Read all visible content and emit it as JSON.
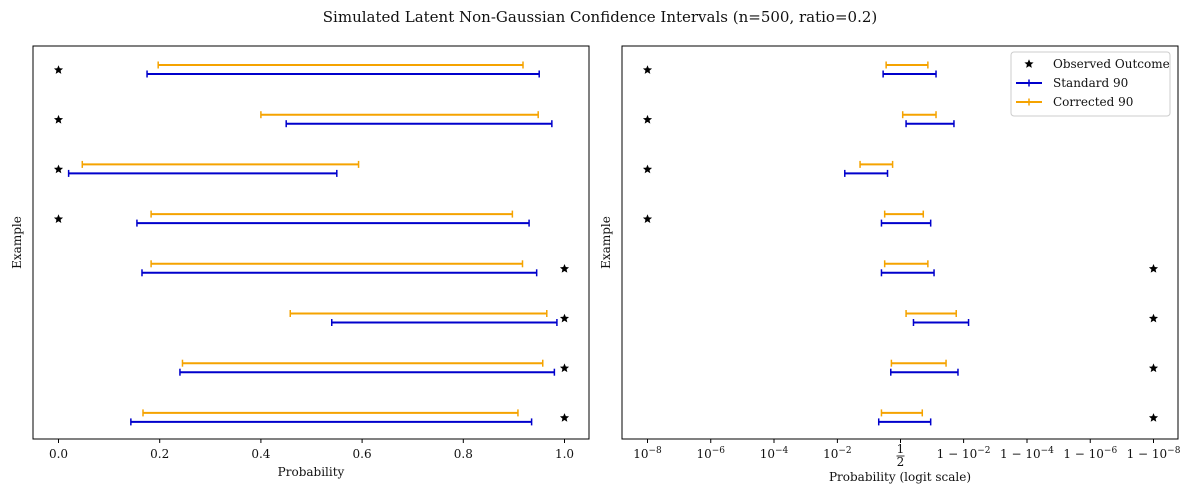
{
  "title": "Simulated Latent Non-Gaussian Confidence Intervals (n=500, ratio=0.2)",
  "colors": {
    "standard": "#0000cc",
    "corrected": "#f5a300",
    "observed": "#000000"
  },
  "chart_data": [
    {
      "type": "errorbar",
      "scale": "linear",
      "xlabel": "Probability",
      "ylabel": "Example",
      "xlim": [
        -0.05,
        1.05
      ],
      "xticks": [
        0.0,
        0.2,
        0.4,
        0.6,
        0.8,
        1.0
      ],
      "xtick_labels": [
        "0.0",
        "0.2",
        "0.4",
        "0.6",
        "0.8",
        "1.0"
      ],
      "examples": [
        {
          "observed": 0,
          "standard": [
            0.175,
            0.95
          ],
          "corrected": [
            0.197,
            0.918
          ]
        },
        {
          "observed": 0,
          "standard": [
            0.45,
            0.975
          ],
          "corrected": [
            0.4,
            0.948
          ]
        },
        {
          "observed": 0,
          "standard": [
            0.02,
            0.55
          ],
          "corrected": [
            0.047,
            0.593
          ]
        },
        {
          "observed": 0,
          "standard": [
            0.155,
            0.93
          ],
          "corrected": [
            0.183,
            0.897
          ]
        },
        {
          "observed": 1,
          "standard": [
            0.165,
            0.945
          ],
          "corrected": [
            0.183,
            0.917
          ]
        },
        {
          "observed": 1,
          "standard": [
            0.54,
            0.985
          ],
          "corrected": [
            0.458,
            0.965
          ]
        },
        {
          "observed": 1,
          "standard": [
            0.24,
            0.98
          ],
          "corrected": [
            0.245,
            0.957
          ]
        },
        {
          "observed": 1,
          "standard": [
            0.143,
            0.935
          ],
          "corrected": [
            0.167,
            0.908
          ]
        }
      ]
    },
    {
      "type": "errorbar",
      "scale": "logit",
      "xlabel": "Probability (logit scale)",
      "ylabel": "Example",
      "xticks": [
        1e-08,
        1e-06,
        0.0001,
        0.01,
        0.5,
        0.99,
        0.9999,
        0.999999,
        0.99999999
      ],
      "xtick_labels": [
        "10",
        "10",
        "10",
        "10",
        "1/2",
        "1 − 10",
        "1 − 10",
        "1 − 10",
        "1 − 10"
      ],
      "xtick_exponents": [
        "−8",
        "−6",
        "−4",
        "−2",
        "",
        "−2",
        "−4",
        "−6",
        "−8"
      ],
      "legend": {
        "position": "upper right",
        "entries": [
          {
            "label": "Observed Outcome",
            "kind": "star"
          },
          {
            "label": "Standard 90",
            "kind": "standard"
          },
          {
            "label": "Corrected 90",
            "kind": "corrected"
          }
        ]
      },
      "examples": [
        {
          "observed": 1e-08,
          "standard": [
            0.22,
            0.93
          ],
          "corrected": [
            0.26,
            0.88
          ]
        },
        {
          "observed": 1e-08,
          "standard": [
            0.6,
            0.98
          ],
          "corrected": [
            0.54,
            0.93
          ]
        },
        {
          "observed": 1e-08,
          "standard": [
            0.017,
            0.28
          ],
          "corrected": [
            0.05,
            0.36
          ]
        },
        {
          "observed": 1e-08,
          "standard": [
            0.2,
            0.9
          ],
          "corrected": [
            0.24,
            0.84
          ]
        },
        {
          "observed": 0.99999999,
          "standard": [
            0.2,
            0.92
          ],
          "corrected": [
            0.24,
            0.88
          ]
        },
        {
          "observed": 0.99999999,
          "standard": [
            0.72,
            0.993
          ],
          "corrected": [
            0.6,
            0.983
          ]
        },
        {
          "observed": 0.99999999,
          "standard": [
            0.33,
            0.985
          ],
          "corrected": [
            0.34,
            0.965
          ]
        },
        {
          "observed": 0.99999999,
          "standard": [
            0.17,
            0.9
          ],
          "corrected": [
            0.2,
            0.83
          ]
        }
      ]
    }
  ]
}
